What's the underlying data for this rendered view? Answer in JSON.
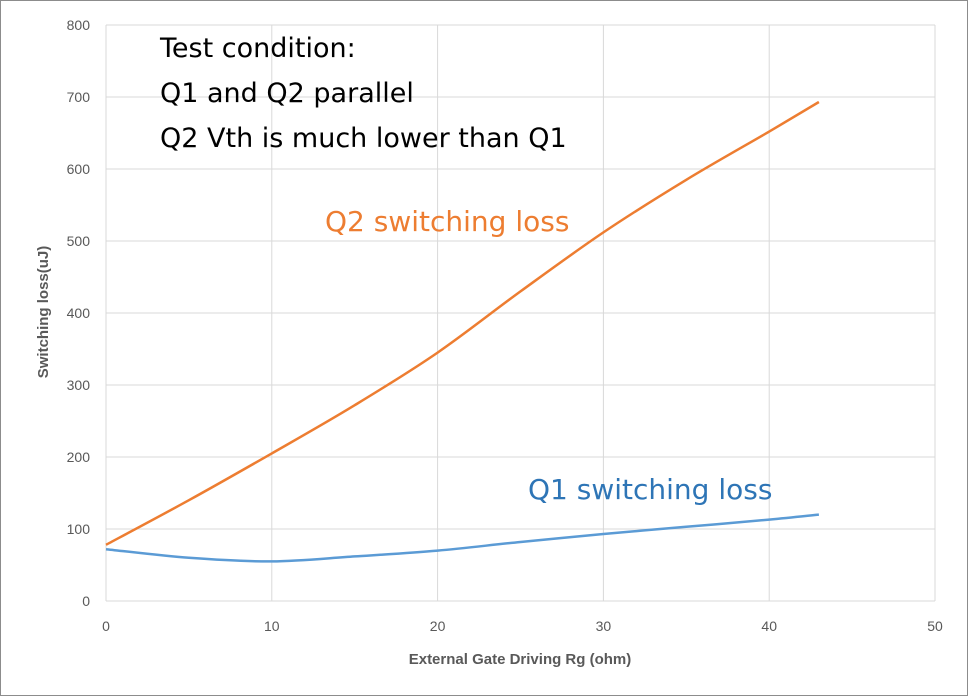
{
  "chart_data": {
    "type": "line",
    "title": "",
    "xlabel": "External Gate Driving Rg (ohm)",
    "ylabel": "Switching loss(uJ)",
    "xlim": [
      0,
      50
    ],
    "ylim": [
      0,
      800
    ],
    "x_ticks": [
      "0",
      "10",
      "20",
      "30",
      "40",
      "50"
    ],
    "y_ticks": [
      "0",
      "100",
      "200",
      "300",
      "400",
      "500",
      "600",
      "700",
      "800"
    ],
    "grid": "vertical and horizontal",
    "annotations": [
      "Test condition:",
      "Q1 and Q2 parallel",
      "Q2 Vth is much lower than Q1"
    ],
    "series": [
      {
        "name": "Q2 switching loss",
        "color": "#ED7D31",
        "x": [
          0,
          5,
          10,
          15,
          20,
          25,
          30,
          35,
          40,
          43
        ],
        "y": [
          78,
          140,
          205,
          272,
          345,
          430,
          512,
          585,
          652,
          693
        ]
      },
      {
        "name": "Q1 switching loss",
        "color": "#5B9BD5",
        "x": [
          0,
          5,
          10,
          15,
          20,
          25,
          30,
          35,
          40,
          43
        ],
        "y": [
          72,
          60,
          55,
          62,
          70,
          82,
          93,
          103,
          113,
          120
        ]
      }
    ]
  }
}
